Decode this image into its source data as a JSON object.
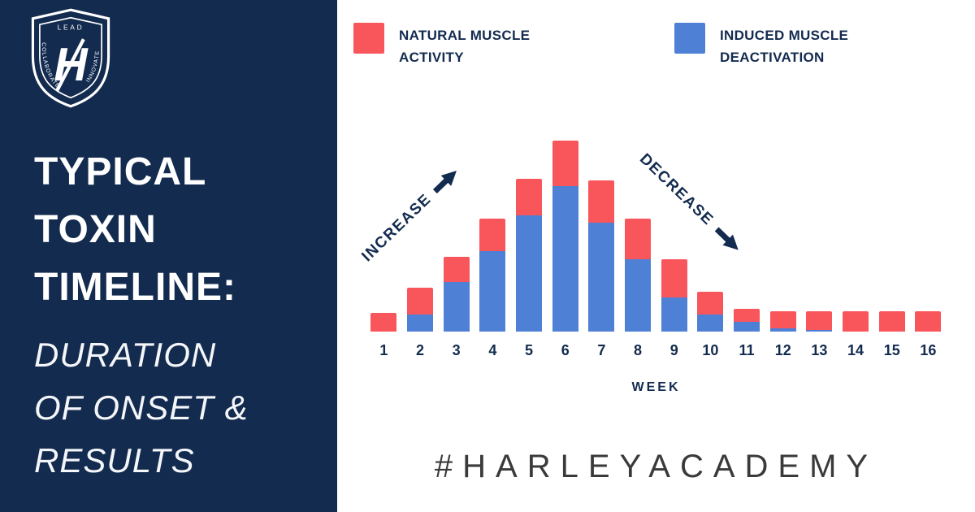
{
  "sidebar": {
    "logo": {
      "top_text": "LEAD",
      "left_text": "COLLABORATE",
      "right_text": "INNOVATE",
      "letter": "H"
    },
    "title_lines": [
      "TYPICAL",
      "TOXIN",
      "TIMELINE:"
    ],
    "subtitle_lines": [
      "DURATION",
      "OF ONSET &",
      "RESULTS"
    ]
  },
  "legend": [
    {
      "label": "NATURAL MUSCLE ACTIVITY",
      "color": "#F9565C"
    },
    {
      "label": "INDUCED MUSCLE DEACTIVATION",
      "color": "#4E80D5"
    }
  ],
  "annotations": {
    "increase": "INCREASE",
    "decrease": "DECREASE"
  },
  "chart_data": {
    "type": "bar",
    "stacked": true,
    "title": "Typical toxin timeline: duration of onset & results",
    "categories": [
      "1",
      "2",
      "3",
      "4",
      "5",
      "6",
      "7",
      "8",
      "9",
      "10",
      "11",
      "12",
      "13",
      "14",
      "15",
      "16"
    ],
    "series": [
      {
        "name": "INDUCED MUSCLE DEACTIVATION",
        "color": "#4E80D5",
        "values": [
          0,
          0.9,
          2.6,
          4.2,
          6.1,
          7.6,
          5.7,
          3.8,
          1.8,
          0.9,
          0.5,
          0.15,
          0.1,
          0,
          0,
          0
        ]
      },
      {
        "name": "NATURAL MUSCLE ACTIVITY",
        "color": "#F9565C",
        "values": [
          1.0,
          1.4,
          1.3,
          1.7,
          1.9,
          2.4,
          2.2,
          2.1,
          2.0,
          1.2,
          0.7,
          0.9,
          0.95,
          1.05,
          1.05,
          1.05
        ]
      }
    ],
    "xlabel": "WEEK",
    "ylabel": "",
    "ylim": [
      0,
      10
    ],
    "grid": false,
    "legend_position": "top",
    "annotations": [
      "INCREASE",
      "DECREASE"
    ]
  },
  "footer": {
    "hashtag": "#HARLEYACADEMY"
  },
  "colors": {
    "navy": "#132B4F",
    "red": "#F9565C",
    "blue": "#4E80D5",
    "hashtag_text": "#3a3a3a",
    "background": "#ffffff"
  }
}
